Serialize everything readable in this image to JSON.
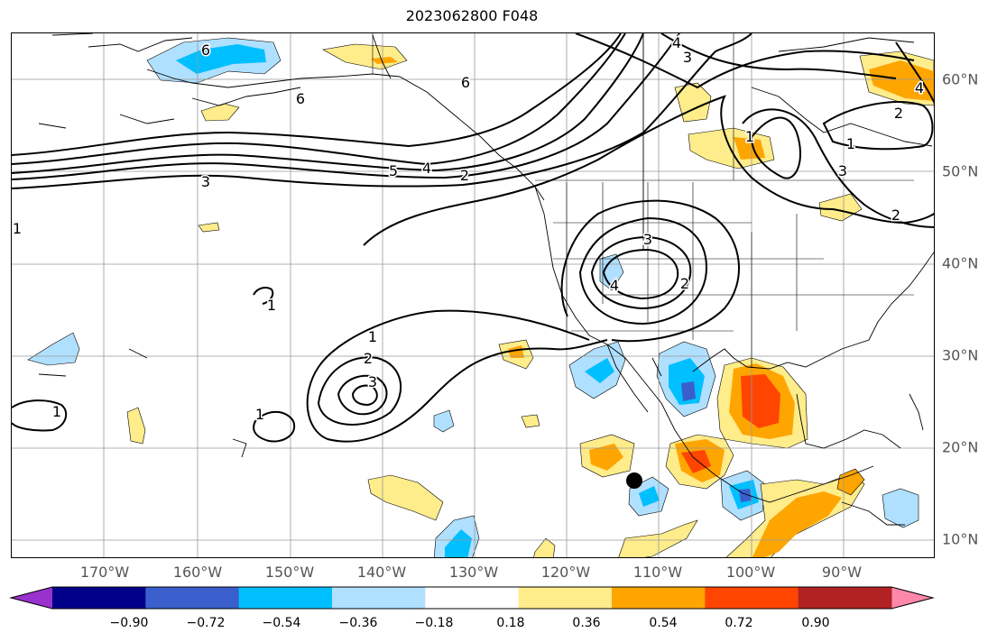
{
  "title": "2023062800 F048",
  "lon_labels": [
    "170°W",
    "160°W",
    "150°W",
    "140°W",
    "130°W",
    "120°W",
    "110°W",
    "100°W",
    "90°W"
  ],
  "lat_labels": [
    "60°N",
    "50°N",
    "40°N",
    "30°N",
    "20°N",
    "10°N"
  ],
  "colorbar": {
    "tick_labels": [
      "−0.90",
      "−0.72",
      "−0.54",
      "−0.36",
      "−0.18",
      "0.18",
      "0.36",
      "0.54",
      "0.72",
      "0.90"
    ],
    "colors": [
      "#9932cc",
      "#00008b",
      "#3a5fcd",
      "#00bfff",
      "#b0e0ff",
      "#ffffff",
      "#ffec8b",
      "#ffa500",
      "#ff4500",
      "#b22222",
      "#ff88aa"
    ]
  },
  "contour_labels": [
    "6",
    "6",
    "6",
    "4",
    "3",
    "5",
    "4",
    "2",
    "3",
    "3",
    "2",
    "4",
    "1",
    "3",
    "2",
    "1",
    "2",
    "3",
    "1",
    "1",
    "1",
    "2",
    "4",
    "1",
    "1"
  ],
  "marker": "storm-center-dot"
}
